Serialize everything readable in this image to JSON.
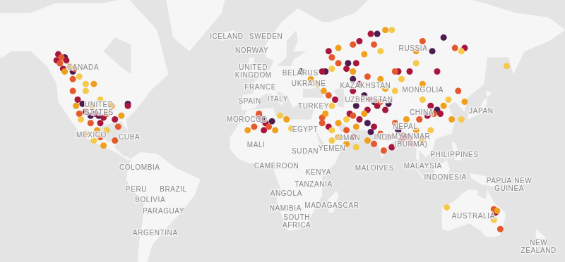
{
  "chart_data": {
    "type": "scatter",
    "marker": "circle",
    "grid": false,
    "tick_labels": false,
    "xlim": [
      -157,
      188
    ],
    "ylim": [
      -48,
      72
    ],
    "series": [
      {
        "color": "#f6c94a",
        "values": [
          [
            -110,
            51
          ],
          [
            -106,
            48
          ],
          [
            -106,
            45
          ],
          [
            -97,
            41
          ],
          [
            -93,
            25
          ],
          [
            -109,
            31
          ],
          [
            -101,
            19
          ],
          [
            46,
            54
          ],
          [
            83,
            66
          ],
          [
            76,
            60
          ],
          [
            46,
            38
          ],
          [
            55,
            31
          ],
          [
            46,
            25
          ],
          [
            85,
            45
          ],
          [
            89,
            50
          ],
          [
            98,
            56
          ],
          [
            126,
            60
          ],
          [
            107,
            25
          ],
          [
            126,
            31
          ],
          [
            102,
            41
          ],
          [
            118,
            41
          ],
          [
            46,
            19
          ],
          [
            61,
            15
          ],
          [
            14,
            33
          ],
          [
            146,
            -29
          ],
          [
            154,
            55
          ],
          [
            117,
            -22
          ],
          [
            21,
            26
          ]
        ]
      },
      {
        "color": "#f0a01c",
        "values": [
          [
            -116,
            55
          ],
          [
            -119,
            53
          ],
          [
            -101,
            48
          ],
          [
            -102,
            38
          ],
          [
            -90,
            38
          ],
          [
            -84,
            33
          ],
          [
            -99,
            25
          ],
          [
            -95,
            16
          ],
          [
            -112,
            38
          ],
          [
            -106,
            23
          ],
          [
            33,
            50
          ],
          [
            59,
            53
          ],
          [
            50,
            61
          ],
          [
            79,
            66
          ],
          [
            66,
            59
          ],
          [
            37,
            48
          ],
          [
            41,
            45
          ],
          [
            42,
            34
          ],
          [
            66,
            34
          ],
          [
            61,
            27
          ],
          [
            50,
            29
          ],
          [
            50,
            21
          ],
          [
            102,
            48
          ],
          [
            98,
            60
          ],
          [
            76,
            50
          ],
          [
            79,
            46
          ],
          [
            98,
            25
          ],
          [
            92,
            31
          ],
          [
            102,
            19
          ],
          [
            115,
            38
          ],
          [
            120,
            31
          ],
          [
            128,
            40
          ],
          [
            55,
            17
          ],
          [
            68,
            19
          ],
          [
            11,
            25
          ],
          [
            -6,
            25
          ],
          [
            18,
            31
          ],
          [
            148,
            -24
          ]
        ]
      },
      {
        "color": "#e45a2c",
        "values": [
          [
            -121,
            58
          ],
          [
            -122,
            56
          ],
          [
            -113,
            54
          ],
          [
            -114,
            50
          ],
          [
            -114,
            45
          ],
          [
            -110,
            34
          ],
          [
            -93,
            34
          ],
          [
            -86,
            27
          ],
          [
            -103,
            29
          ],
          [
            -88,
            19
          ],
          [
            -97,
            21
          ],
          [
            50,
            56
          ],
          [
            59,
            62
          ],
          [
            72,
            62
          ],
          [
            46,
            58
          ],
          [
            44,
            43
          ],
          [
            40,
            32
          ],
          [
            68,
            51
          ],
          [
            76,
            40
          ],
          [
            59,
            33
          ],
          [
            76,
            23
          ],
          [
            55,
            25
          ],
          [
            122,
            61
          ],
          [
            102,
            63
          ],
          [
            85,
            53
          ],
          [
            94,
            20
          ],
          [
            85,
            29
          ],
          [
            78,
            13
          ],
          [
            109,
            34
          ],
          [
            100,
            31
          ],
          [
            124,
            45
          ],
          [
            40,
            29
          ],
          [
            72,
            17
          ],
          [
            7,
            27
          ],
          [
            -2,
            27
          ],
          [
            1,
            34
          ],
          [
            146,
            -23
          ],
          [
            150,
            -34
          ]
        ]
      },
      {
        "color": "#a8163d",
        "values": [
          [
            -123,
            59
          ],
          [
            -124,
            57
          ],
          [
            -118,
            57
          ],
          [
            -120,
            54
          ],
          [
            -111,
            41
          ],
          [
            -106,
            35
          ],
          [
            -100,
            34
          ],
          [
            -95,
            32
          ],
          [
            -88,
            31
          ],
          [
            -97,
            29
          ],
          [
            -80,
            38
          ],
          [
            40,
            53
          ],
          [
            55,
            54
          ],
          [
            61,
            56
          ],
          [
            44,
            60
          ],
          [
            63,
            63
          ],
          [
            70,
            65
          ],
          [
            48,
            41
          ],
          [
            63,
            48
          ],
          [
            59,
            45
          ],
          [
            70,
            41
          ],
          [
            74,
            38
          ],
          [
            79,
            36
          ],
          [
            68,
            36
          ],
          [
            57,
            34
          ],
          [
            63,
            31
          ],
          [
            72,
            27
          ],
          [
            81,
            21
          ],
          [
            59,
            21
          ],
          [
            94,
            53
          ],
          [
            128,
            61
          ],
          [
            87,
            53
          ],
          [
            111,
            53
          ],
          [
            90,
            22
          ],
          [
            89,
            19
          ],
          [
            96,
            17
          ],
          [
            83,
            15
          ],
          [
            107,
            38
          ],
          [
            113,
            34
          ],
          [
            105,
            33
          ],
          [
            44,
            27
          ],
          [
            1,
            33
          ],
          [
            5,
            29
          ],
          [
            4,
            25
          ],
          [
            147,
            -25
          ]
        ]
      },
      {
        "color": "#4b1d4f",
        "values": [
          [
            -119,
            58
          ],
          [
            -114,
            53
          ],
          [
            -108,
            39
          ],
          [
            -103,
            33
          ],
          [
            -98,
            33
          ],
          [
            -80,
            39
          ],
          [
            27,
            53
          ],
          [
            42,
            53
          ],
          [
            56,
            56
          ],
          [
            74,
            65
          ],
          [
            59,
            50
          ],
          [
            66,
            43
          ],
          [
            72,
            40
          ],
          [
            81,
            39
          ],
          [
            61,
            38
          ],
          [
            68,
            29
          ],
          [
            70,
            24
          ],
          [
            108,
            60
          ],
          [
            115,
            64
          ],
          [
            87,
            25
          ],
          [
            93,
            21
          ],
          [
            111,
            36
          ],
          [
            3,
            31
          ],
          [
            9,
            30
          ]
        ]
      }
    ],
    "annotations": [
      {
        "text": "ICELAND",
        "x": -19,
        "y": 64.2
      },
      {
        "text": "SWEDEN",
        "x": 5.3,
        "y": 64.2
      },
      {
        "text": "NORWAY",
        "x": -3.4,
        "y": 60.1
      },
      {
        "text": "RUSSIA",
        "x": 96.2,
        "y": 60.7
      },
      {
        "text": "CANADA",
        "x": -107.7,
        "y": 54.3
      },
      {
        "text": [
          "UNITED",
          "KINGDOM"
        ],
        "x": -2.5,
        "y": 53
      },
      {
        "text": "BELARUS",
        "x": 26.5,
        "y": 52.2
      },
      {
        "text": "UKRAINE",
        "x": 31.7,
        "y": 48
      },
      {
        "text": "KAZAKHSTAN",
        "x": 66.7,
        "y": 47.2
      },
      {
        "text": "FRANCE",
        "x": 1.8,
        "y": 46.6
      },
      {
        "text": "MONGOLIA",
        "x": 102.2,
        "y": 45.4
      },
      {
        "text": "ITALY",
        "x": 12.6,
        "y": 41.2
      },
      {
        "text": "SPAIN",
        "x": -4.7,
        "y": 40
      },
      {
        "text": "UZBEKISTAN",
        "x": 68.9,
        "y": 40.7
      },
      {
        "text": "TURKEY",
        "x": 34.7,
        "y": 37.6
      },
      {
        "text": "CHINA",
        "x": 101.4,
        "y": 34.4
      },
      {
        "text": "JAPAN",
        "x": 138.2,
        "y": 35.2
      },
      {
        "text": [
          "UNITED",
          "STATES"
        ],
        "x": -97.8,
        "y": 36.3
      },
      {
        "text": "MOROCCO",
        "x": -6.4,
        "y": 30.8
      },
      {
        "text": "EGYPT",
        "x": 29.5,
        "y": 25.1
      },
      {
        "text": "NEPAL",
        "x": 91.4,
        "y": 27
      },
      {
        "text": "MEXICO",
        "x": -102.5,
        "y": 22.2
      },
      {
        "text": "CUBA",
        "x": -79.1,
        "y": 20.7
      },
      {
        "text": "OMAN",
        "x": 56.4,
        "y": 20.4
      },
      {
        "text": "INDIA",
        "x": 78.4,
        "y": 20.6
      },
      {
        "text": [
          "MYANMAR",
          "(BURMA)"
        ],
        "x": 94.9,
        "y": 19.1
      },
      {
        "text": "MALI",
        "x": -0.8,
        "y": 16.2
      },
      {
        "text": "YEMEN",
        "x": 46,
        "y": 14.1
      },
      {
        "text": "SUDAN",
        "x": 29.5,
        "y": 12.4
      },
      {
        "text": "PHILIPPINES",
        "x": 121.7,
        "y": 10.3
      },
      {
        "text": "CAMEROON",
        "x": 11.8,
        "y": 3
      },
      {
        "text": "COLOMBIA",
        "x": -72.7,
        "y": 2.2
      },
      {
        "text": "MALDIVES",
        "x": 72.4,
        "y": 1.7
      },
      {
        "text": "MALAYSIA",
        "x": 102.2,
        "y": 3
      },
      {
        "text": "KENYA",
        "x": 37.7,
        "y": -0.9
      },
      {
        "text": "INDONESIA",
        "x": 116.1,
        "y": -3.9
      },
      {
        "text": [
          "PAPUA NEW",
          "GUINEA"
        ],
        "x": 155.5,
        "y": -8.6
      },
      {
        "text": "TANZANIA",
        "x": 34.7,
        "y": -8.2
      },
      {
        "text": "PERU",
        "x": -74.8,
        "y": -11.2
      },
      {
        "text": "BRAZIL",
        "x": -51.9,
        "y": -11.2
      },
      {
        "text": "ANGOLA",
        "x": 17.8,
        "y": -13.8
      },
      {
        "text": "BOLIVIA",
        "x": -66.2,
        "y": -17.9
      },
      {
        "text": "MADAGASCAR",
        "x": 46,
        "y": -21.2
      },
      {
        "text": "NAMIBIA",
        "x": 17.4,
        "y": -22.8
      },
      {
        "text": "PARAGUAY",
        "x": -57.9,
        "y": -24.4
      },
      {
        "text": "AUSTRALIA",
        "x": 133.4,
        "y": -27.1
      },
      {
        "text": [
          "SOUTH",
          "AFRICA"
        ],
        "x": 24.3,
        "y": -30.1
      },
      {
        "text": "ARGENTINA",
        "x": -63.1,
        "y": -36.2
      },
      {
        "text": [
          "NEW",
          "ZEALAND"
        ],
        "x": 173.7,
        "y": -42.9
      }
    ]
  }
}
